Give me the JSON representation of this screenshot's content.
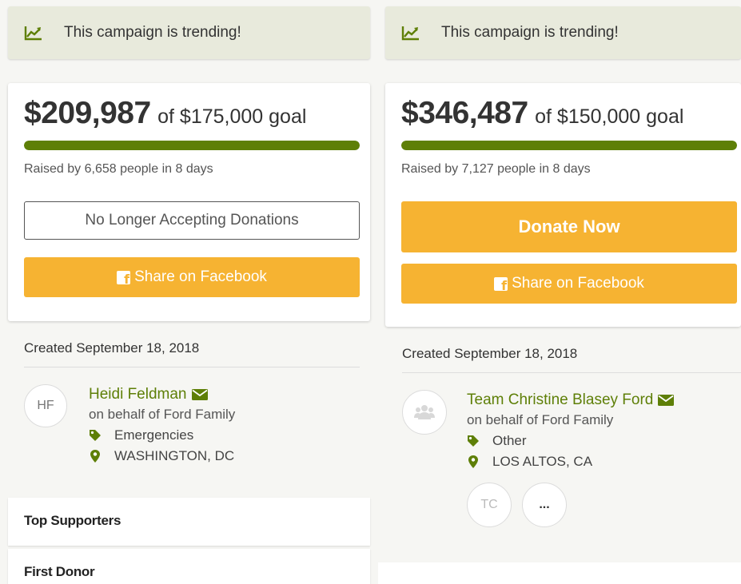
{
  "left": {
    "trending_text": "This campaign is trending!",
    "amount": "$209,987",
    "goal": "of $175,000 goal",
    "progress_fraction": 1.0,
    "raised_text": "Raised by 6,658 people in 8 days",
    "closed_button_label": "No Longer Accepting Donations",
    "share_label": "Share on Facebook",
    "created_text": "Created September 18, 2018",
    "organizer": {
      "initials": "HF",
      "name": "Heidi Feldman",
      "behalf": "on behalf of Ford Family",
      "category": "Emergencies",
      "location": "WASHINGTON, DC"
    },
    "top_supporters_title": "Top Supporters",
    "first_donor_title": "First Donor"
  },
  "right": {
    "trending_text": "This campaign is trending!",
    "amount": "$346,487",
    "goal": "of $150,000 goal",
    "progress_fraction": 1.0,
    "raised_text": "Raised by 7,127 people in 8 days",
    "donate_label": "Donate Now",
    "share_label": "Share on Facebook",
    "created_text": "Created September 18, 2018",
    "organizer": {
      "name": "Team Christine Blasey Ford",
      "behalf": "on behalf of Ford Family",
      "category": "Other",
      "location": "LOS ALTOS, CA"
    },
    "team_members": [
      {
        "initials": "TC"
      },
      {
        "initials": "..."
      }
    ]
  },
  "icons": {
    "trending": "trending-up-icon",
    "facebook": "facebook-icon",
    "mail": "envelope-icon",
    "tag": "tag-icon",
    "location": "map-marker-icon",
    "team_avatar": "users-icon"
  },
  "colors": {
    "accent_green": "#5e7f07",
    "button_orange": "#f6b332",
    "trend_banner": "#e8eadc"
  }
}
